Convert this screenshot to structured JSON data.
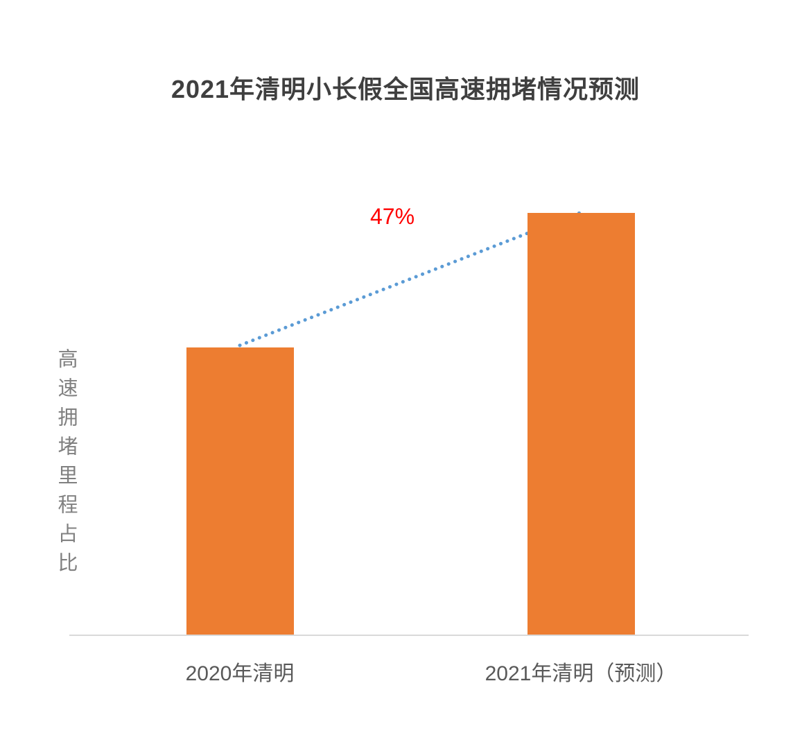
{
  "chart_data": {
    "type": "bar",
    "title": "2021年清明小长假全国高速拥堵情况预测",
    "ylabel": "高速拥堵里程占比",
    "categories": [
      "2020年清明",
      "2021年清明（预测）"
    ],
    "values": [
      100,
      147
    ],
    "annotation": "47%",
    "annotation_color": "#ff0000",
    "bar_color": "#ed7d31",
    "trend_line_color": "#5b9bd5",
    "axis_line_color": "#d9d9d9",
    "grid": false,
    "legend_position": "none",
    "x_axis_values_shown": false,
    "y_axis_values_shown": false
  }
}
